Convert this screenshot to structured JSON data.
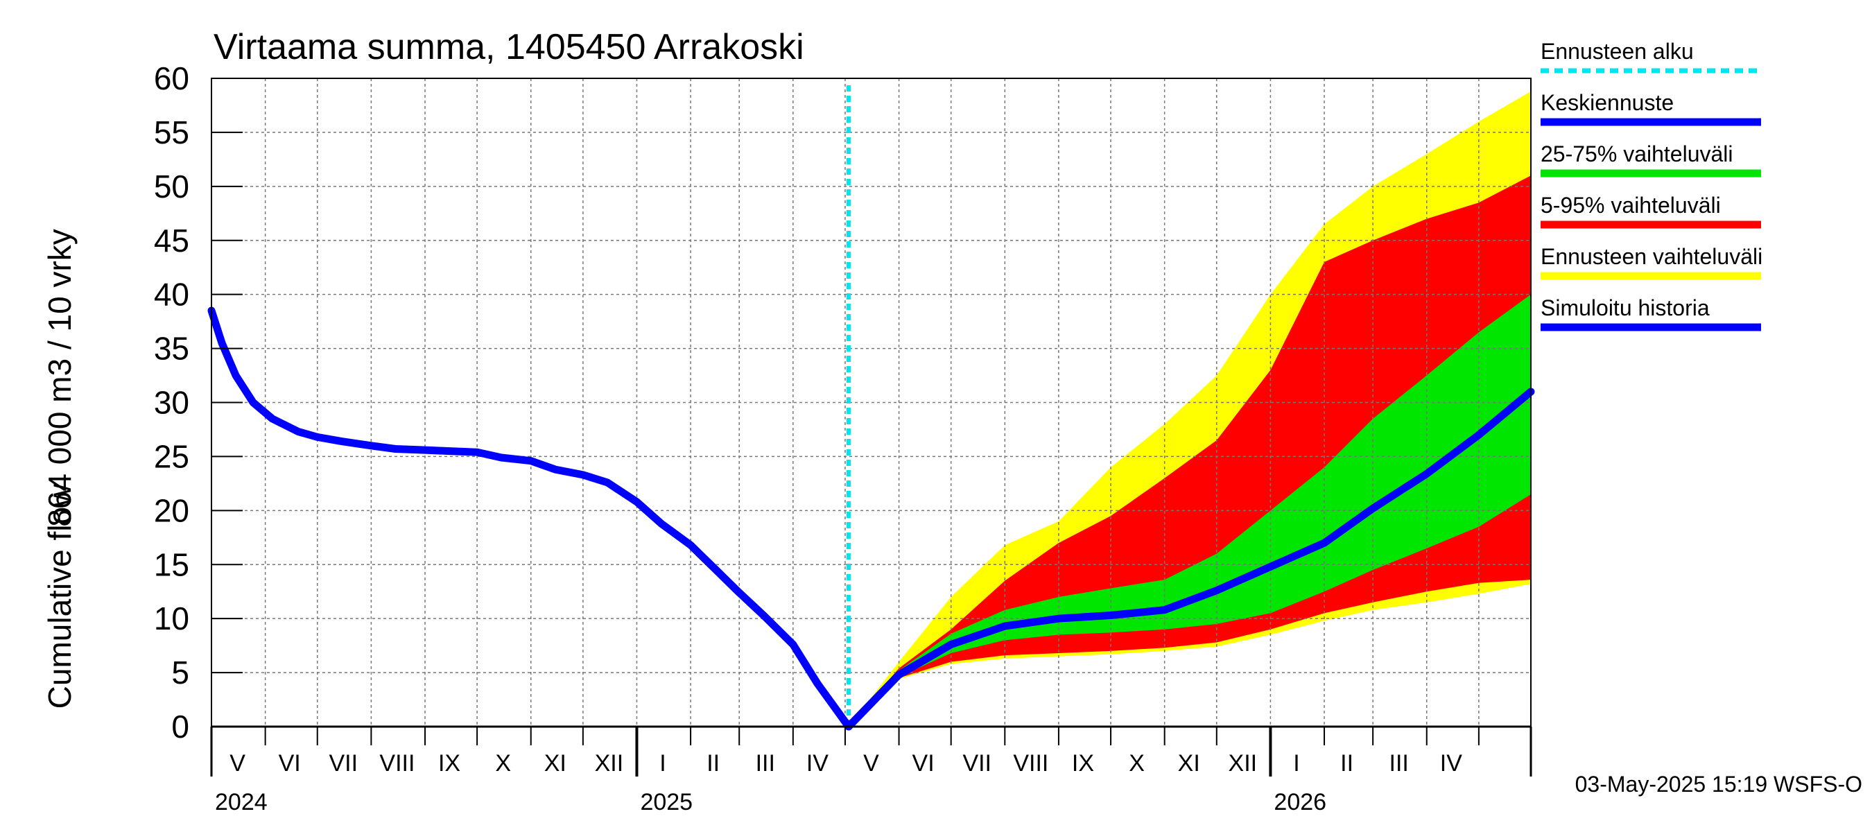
{
  "title": "Virtaama summa, 1405450 Arrakoski",
  "ylabel_top": "864 000 m3 / 10 vrky",
  "ylabel_bottom": "Cumulative flow",
  "footer": "03-May-2025 15:19 WSFS-O",
  "legend": [
    {
      "label": "Ennusteen alku",
      "color": "#00e5ee",
      "style": "dotted"
    },
    {
      "label": "Keskiennuste",
      "color": "#0000ff",
      "style": "solid"
    },
    {
      "label": "25-75% vaihteluväli",
      "color": "#00e600",
      "style": "solid"
    },
    {
      "label": "5-95% vaihteluväli",
      "color": "#ff0000",
      "style": "solid"
    },
    {
      "label": "Ennusteen vaihteluväli",
      "color": "#ffff00",
      "style": "solid"
    },
    {
      "label": "Simuloitu historia",
      "color": "#0000ff",
      "style": "solid"
    }
  ],
  "chart_data": {
    "type": "area",
    "title": "Virtaama summa, 1405450 Arrakoski",
    "ylabel": "Cumulative flow   864 000 m3 / 10 vrky",
    "ylim": [
      0,
      60
    ],
    "yticks": [
      0,
      5,
      10,
      15,
      20,
      25,
      30,
      35,
      40,
      45,
      50,
      55,
      60
    ],
    "xlim": [
      "2024-05-01",
      "2026-05-31"
    ],
    "forecast_start": "2025-05-03",
    "grid": true,
    "legend_position": "right",
    "month_labels": [
      {
        "label": "V",
        "date": "2024-05-16"
      },
      {
        "label": "VI",
        "date": "2024-06-15"
      },
      {
        "label": "VII",
        "date": "2024-07-16"
      },
      {
        "label": "VIII",
        "date": "2024-08-16"
      },
      {
        "label": "IX",
        "date": "2024-09-15"
      },
      {
        "label": "X",
        "date": "2024-10-16"
      },
      {
        "label": "XI",
        "date": "2024-11-15"
      },
      {
        "label": "XII",
        "date": "2024-12-16"
      },
      {
        "label": "I",
        "date": "2025-01-16"
      },
      {
        "label": "II",
        "date": "2025-02-14"
      },
      {
        "label": "III",
        "date": "2025-03-16"
      },
      {
        "label": "IV",
        "date": "2025-04-15"
      },
      {
        "label": "V",
        "date": "2025-05-16"
      },
      {
        "label": "VI",
        "date": "2025-06-15"
      },
      {
        "label": "VII",
        "date": "2025-07-16"
      },
      {
        "label": "VIII",
        "date": "2025-08-16"
      },
      {
        "label": "IX",
        "date": "2025-09-15"
      },
      {
        "label": "X",
        "date": "2025-10-16"
      },
      {
        "label": "XI",
        "date": "2025-11-15"
      },
      {
        "label": "XII",
        "date": "2025-12-16"
      },
      {
        "label": "I",
        "date": "2026-01-16"
      },
      {
        "label": "II",
        "date": "2026-02-14"
      },
      {
        "label": "III",
        "date": "2026-03-16"
      },
      {
        "label": "IV",
        "date": "2026-04-15"
      }
    ],
    "year_labels": [
      {
        "label": "2024",
        "date": "2024-05-01"
      },
      {
        "label": "2025",
        "date": "2025-01-01"
      },
      {
        "label": "2026",
        "date": "2026-01-01"
      }
    ],
    "series": [
      {
        "name": "Simuloitu historia",
        "x": [
          "2024-05-01",
          "2024-05-07",
          "2024-05-15",
          "2024-05-25",
          "2024-06-05",
          "2024-06-20",
          "2024-07-01",
          "2024-07-15",
          "2024-08-01",
          "2024-08-15",
          "2024-09-01",
          "2024-09-15",
          "2024-10-01",
          "2024-10-15",
          "2024-11-01",
          "2024-11-15",
          "2024-12-01",
          "2024-12-15",
          "2025-01-01",
          "2025-01-15",
          "2025-02-01",
          "2025-02-15",
          "2025-03-01",
          "2025-03-15",
          "2025-04-01",
          "2025-04-15",
          "2025-05-03"
        ],
        "y": [
          38.5,
          35.5,
          32.5,
          30.0,
          28.5,
          27.3,
          26.8,
          26.4,
          26.0,
          25.7,
          25.6,
          25.5,
          25.4,
          24.9,
          24.6,
          23.8,
          23.3,
          22.6,
          20.8,
          18.8,
          16.8,
          14.6,
          12.4,
          10.3,
          7.6,
          4.0,
          0.0
        ]
      },
      {
        "name": "Keskiennuste",
        "x": [
          "2025-05-03",
          "2025-06-01",
          "2025-07-01",
          "2025-08-01",
          "2025-09-01",
          "2025-10-01",
          "2025-11-01",
          "2025-12-01",
          "2026-01-01",
          "2026-02-01",
          "2026-03-01",
          "2026-04-01",
          "2026-05-01",
          "2026-05-31"
        ],
        "y": [
          0.0,
          4.8,
          7.6,
          9.3,
          10.0,
          10.3,
          10.8,
          12.6,
          14.8,
          17.0,
          20.2,
          23.4,
          27.0,
          31.0
        ]
      },
      {
        "name": "25-75% vaihteluväli",
        "x": [
          "2025-05-03",
          "2025-06-01",
          "2025-07-01",
          "2025-08-01",
          "2025-09-01",
          "2025-10-01",
          "2025-11-01",
          "2025-12-01",
          "2026-01-01",
          "2026-02-01",
          "2026-03-01",
          "2026-04-01",
          "2026-05-01",
          "2026-05-31"
        ],
        "low": [
          0.0,
          4.6,
          6.8,
          8.0,
          8.5,
          8.7,
          9.0,
          9.5,
          10.5,
          12.5,
          14.5,
          16.5,
          18.5,
          21.5
        ],
        "high": [
          0.0,
          5.2,
          8.6,
          10.8,
          12.0,
          12.8,
          13.6,
          16.0,
          20.0,
          24.0,
          28.5,
          32.5,
          36.5,
          40.0
        ]
      },
      {
        "name": "5-95% vaihteluväli",
        "x": [
          "2025-05-03",
          "2025-06-01",
          "2025-07-01",
          "2025-08-01",
          "2025-09-01",
          "2025-10-01",
          "2025-11-01",
          "2025-12-01",
          "2026-01-01",
          "2026-02-01",
          "2026-03-01",
          "2026-04-01",
          "2026-05-01",
          "2026-05-31"
        ],
        "low": [
          0.0,
          4.5,
          6.0,
          6.6,
          6.8,
          7.0,
          7.3,
          7.8,
          9.0,
          10.5,
          11.5,
          12.5,
          13.3,
          13.6
        ],
        "high": [
          0.0,
          5.4,
          9.0,
          13.5,
          17.0,
          19.5,
          23.0,
          26.5,
          33.0,
          43.0,
          45.0,
          47.0,
          48.5,
          51.0
        ]
      },
      {
        "name": "Ennusteen vaihteluväli",
        "x": [
          "2025-05-03",
          "2025-06-01",
          "2025-07-01",
          "2025-08-01",
          "2025-09-01",
          "2025-10-01",
          "2025-11-01",
          "2025-12-01",
          "2026-01-01",
          "2026-02-01",
          "2026-03-01",
          "2026-04-01",
          "2026-05-01",
          "2026-05-31"
        ],
        "low": [
          0.0,
          4.4,
          5.8,
          6.3,
          6.5,
          6.7,
          7.0,
          7.4,
          8.5,
          9.8,
          10.8,
          11.5,
          12.3,
          13.2
        ],
        "high": [
          0.0,
          6.0,
          12.0,
          16.8,
          19.0,
          24.0,
          28.0,
          32.5,
          40.0,
          46.5,
          50.0,
          53.0,
          56.0,
          58.8
        ]
      }
    ]
  }
}
